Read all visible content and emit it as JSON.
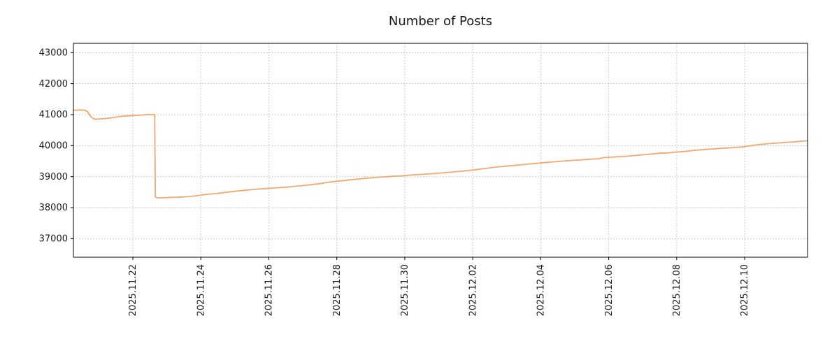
{
  "chart_data": {
    "type": "line",
    "title": "Number of Posts",
    "grid": true,
    "line_color": "#f4a86e",
    "grid_color": "#bdbdbd",
    "axis_color": "#000000",
    "text_color": "#1a1a1a",
    "x_axis": {
      "lim": [
        0.25,
        21.85
      ],
      "ticks": [
        {
          "pos": 2,
          "label": "2025.11.22"
        },
        {
          "pos": 4,
          "label": "2025.11.24"
        },
        {
          "pos": 6,
          "label": "2025.11.26"
        },
        {
          "pos": 8,
          "label": "2025.11.28"
        },
        {
          "pos": 10,
          "label": "2025.11.30"
        },
        {
          "pos": 12,
          "label": "2025.12.02"
        },
        {
          "pos": 14,
          "label": "2025.12.04"
        },
        {
          "pos": 16,
          "label": "2025.12.06"
        },
        {
          "pos": 18,
          "label": "2025.12.08"
        },
        {
          "pos": 20,
          "label": "2025.12.10"
        }
      ]
    },
    "y_axis": {
      "lim": [
        36400,
        43300
      ],
      "ticks": [
        37000,
        38000,
        39000,
        40000,
        41000,
        42000,
        43000
      ]
    },
    "series": [
      {
        "name": "Number of Posts",
        "points": [
          [
            0.25,
            41140
          ],
          [
            0.45,
            41150
          ],
          [
            0.6,
            41140
          ],
          [
            0.68,
            41080
          ],
          [
            0.75,
            40950
          ],
          [
            0.82,
            40880
          ],
          [
            0.9,
            40850
          ],
          [
            1.0,
            40860
          ],
          [
            1.1,
            40865
          ],
          [
            1.25,
            40880
          ],
          [
            1.4,
            40900
          ],
          [
            1.55,
            40930
          ],
          [
            1.7,
            40950
          ],
          [
            1.85,
            40960
          ],
          [
            2.0,
            40970
          ],
          [
            2.15,
            40980
          ],
          [
            2.3,
            40990
          ],
          [
            2.45,
            41000
          ],
          [
            2.6,
            41005
          ],
          [
            2.64,
            41010
          ],
          [
            2.66,
            38340
          ],
          [
            2.75,
            38310
          ],
          [
            2.9,
            38320
          ],
          [
            3.1,
            38330
          ],
          [
            3.3,
            38335
          ],
          [
            3.5,
            38345
          ],
          [
            3.7,
            38365
          ],
          [
            3.9,
            38385
          ],
          [
            4.1,
            38420
          ],
          [
            4.3,
            38440
          ],
          [
            4.5,
            38460
          ],
          [
            4.7,
            38490
          ],
          [
            4.9,
            38515
          ],
          [
            5.1,
            38540
          ],
          [
            5.3,
            38560
          ],
          [
            5.5,
            38580
          ],
          [
            5.7,
            38600
          ],
          [
            5.9,
            38615
          ],
          [
            6.1,
            38630
          ],
          [
            6.3,
            38645
          ],
          [
            6.5,
            38660
          ],
          [
            6.7,
            38680
          ],
          [
            6.9,
            38700
          ],
          [
            7.1,
            38725
          ],
          [
            7.3,
            38750
          ],
          [
            7.5,
            38775
          ],
          [
            7.7,
            38810
          ],
          [
            7.9,
            38840
          ],
          [
            8.1,
            38865
          ],
          [
            8.3,
            38885
          ],
          [
            8.5,
            38910
          ],
          [
            8.7,
            38930
          ],
          [
            8.9,
            38950
          ],
          [
            9.1,
            38970
          ],
          [
            9.3,
            38985
          ],
          [
            9.5,
            39000
          ],
          [
            9.7,
            39015
          ],
          [
            9.9,
            39025
          ],
          [
            10.1,
            39045
          ],
          [
            10.3,
            39060
          ],
          [
            10.5,
            39075
          ],
          [
            10.7,
            39085
          ],
          [
            10.9,
            39105
          ],
          [
            11.1,
            39120
          ],
          [
            11.3,
            39140
          ],
          [
            11.5,
            39160
          ],
          [
            11.7,
            39180
          ],
          [
            11.9,
            39200
          ],
          [
            12.1,
            39225
          ],
          [
            12.3,
            39255
          ],
          [
            12.5,
            39285
          ],
          [
            12.7,
            39310
          ],
          [
            12.9,
            39330
          ],
          [
            13.1,
            39350
          ],
          [
            13.3,
            39370
          ],
          [
            13.5,
            39390
          ],
          [
            13.7,
            39410
          ],
          [
            13.9,
            39430
          ],
          [
            14.1,
            39450
          ],
          [
            14.3,
            39470
          ],
          [
            14.5,
            39490
          ],
          [
            14.7,
            39505
          ],
          [
            14.9,
            39520
          ],
          [
            15.1,
            39535
          ],
          [
            15.3,
            39550
          ],
          [
            15.5,
            39565
          ],
          [
            15.7,
            39575
          ],
          [
            15.85,
            39615
          ],
          [
            16.1,
            39630
          ],
          [
            16.3,
            39645
          ],
          [
            16.5,
            39655
          ],
          [
            16.7,
            39675
          ],
          [
            16.9,
            39695
          ],
          [
            17.1,
            39715
          ],
          [
            17.3,
            39735
          ],
          [
            17.5,
            39755
          ],
          [
            17.7,
            39765
          ],
          [
            17.9,
            39785
          ],
          [
            18.1,
            39800
          ],
          [
            18.3,
            39820
          ],
          [
            18.5,
            39845
          ],
          [
            18.7,
            39865
          ],
          [
            18.9,
            39880
          ],
          [
            19.1,
            39895
          ],
          [
            19.3,
            39915
          ],
          [
            19.5,
            39925
          ],
          [
            19.7,
            39940
          ],
          [
            19.9,
            39955
          ],
          [
            20.1,
            39985
          ],
          [
            20.3,
            40015
          ],
          [
            20.5,
            40045
          ],
          [
            20.7,
            40065
          ],
          [
            20.9,
            40080
          ],
          [
            21.1,
            40095
          ],
          [
            21.3,
            40110
          ],
          [
            21.5,
            40125
          ],
          [
            21.7,
            40145
          ],
          [
            21.84,
            40160
          ]
        ]
      }
    ]
  }
}
